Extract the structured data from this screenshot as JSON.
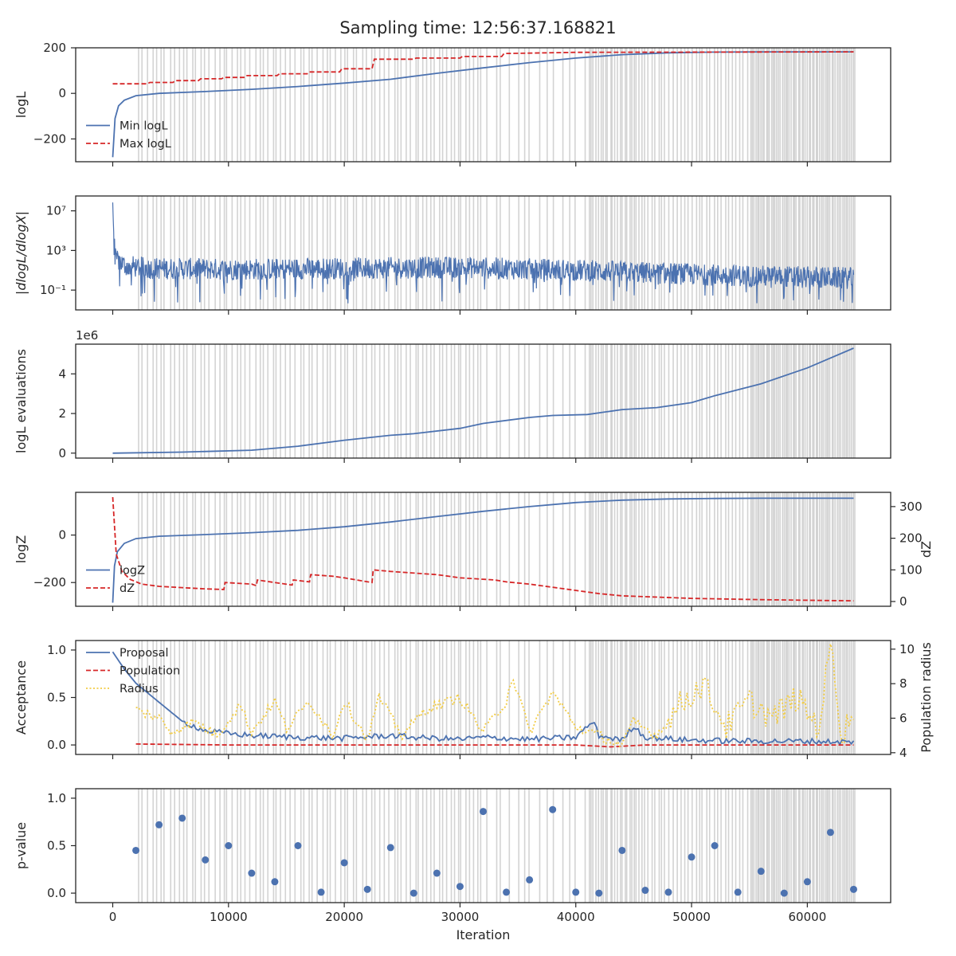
{
  "title": "Sampling time: 12:56:37.168821",
  "colors": {
    "blue": "#4c72b0",
    "red": "#d62728",
    "yellow": "#f2cc44",
    "grey_band": "#d3d3d3",
    "frame": "#262626"
  },
  "chart_data": [
    {
      "type": "line",
      "id": "loglike",
      "ylabel": "logL",
      "xlim": [
        -3200,
        67200
      ],
      "ylim": [
        -300,
        200
      ],
      "yticks": [
        -200,
        0,
        200
      ],
      "ytick_labels": [
        "−200",
        "0",
        "200"
      ],
      "legend": "lower-left",
      "series": [
        {
          "name": "Min logL",
          "style": "solid",
          "color": "blue",
          "x": [
            0,
            200,
            500,
            1000,
            2000,
            4000,
            8000,
            12000,
            16000,
            20000,
            24000,
            28000,
            32000,
            36000,
            40000,
            44000,
            48000,
            52000,
            56000,
            60000,
            64000
          ],
          "y": [
            -280,
            -110,
            -55,
            -30,
            -10,
            0,
            8,
            18,
            30,
            45,
            62,
            88,
            112,
            135,
            155,
            170,
            178,
            181,
            182,
            182,
            182
          ]
        },
        {
          "name": "Max logL",
          "style": "dashed",
          "color": "red",
          "x": [
            0,
            3000,
            3200,
            5200,
            5400,
            7400,
            7600,
            9400,
            9600,
            11400,
            11600,
            14200,
            14400,
            16800,
            17000,
            19600,
            19800,
            22400,
            22600,
            26000,
            26200,
            30000,
            30200,
            33600,
            33800,
            40000,
            64000
          ],
          "y": [
            42,
            42,
            48,
            48,
            56,
            56,
            64,
            64,
            70,
            70,
            78,
            78,
            86,
            86,
            94,
            94,
            108,
            108,
            150,
            150,
            155,
            155,
            162,
            162,
            175,
            180,
            182
          ]
        }
      ]
    },
    {
      "type": "line",
      "id": "dlogl",
      "ylabel": "|dlogL/dlogX|",
      "log_scale": true,
      "xlim": [
        -3200,
        67200
      ],
      "ylim": [
        -3,
        8.5
      ],
      "yticks": [
        -1,
        3,
        7
      ],
      "ytick_labels": [
        "10⁻¹",
        "10³",
        "10⁷"
      ],
      "series": [
        {
          "name": "",
          "style": "solid",
          "color": "blue",
          "x": [
            0,
            100,
            300,
            1000,
            3000,
            10000,
            20000,
            30000,
            40000,
            50000,
            60000,
            64000
          ],
          "y": [
            7.5,
            4.5,
            2.2,
            1.5,
            1.2,
            1.1,
            1.2,
            1.3,
            1.0,
            0.6,
            0.3,
            0.2
          ]
        }
      ]
    },
    {
      "type": "line",
      "id": "logl-evaluations",
      "ylabel": "logL evaluations",
      "offset_label": "1e6",
      "xlim": [
        -3200,
        67200
      ],
      "ylim": [
        -0.25,
        5.5
      ],
      "yticks": [
        0,
        2,
        4
      ],
      "ytick_labels": [
        "0",
        "2",
        "4"
      ],
      "series": [
        {
          "name": "",
          "style": "solid",
          "color": "blue",
          "x": [
            0,
            6000,
            12000,
            16000,
            20000,
            24000,
            26000,
            30000,
            32000,
            36000,
            38000,
            41000,
            44000,
            47000,
            50000,
            52000,
            56000,
            60000,
            64000
          ],
          "y": [
            0,
            0.05,
            0.15,
            0.35,
            0.65,
            0.9,
            0.98,
            1.25,
            1.5,
            1.8,
            1.9,
            1.95,
            2.2,
            2.3,
            2.55,
            2.9,
            3.5,
            4.3,
            5.3
          ]
        }
      ]
    },
    {
      "type": "line",
      "id": "logz",
      "ylabel": "logZ",
      "ylabel_right": "dZ",
      "xlim": [
        -3200,
        67200
      ],
      "ylim": [
        -300,
        180
      ],
      "yticks": [
        -200,
        0
      ],
      "ytick_labels": [
        "−200",
        "0"
      ],
      "ylim_right": [
        -15,
        345
      ],
      "yticks_right": [
        0,
        100,
        200,
        300
      ],
      "ytick_labels_right": [
        "0",
        "100",
        "200",
        "300"
      ],
      "legend": "lower-left",
      "series": [
        {
          "name": "logZ",
          "style": "solid",
          "color": "blue",
          "axis": "left",
          "x": [
            0,
            150,
            400,
            1000,
            2000,
            4000,
            8000,
            12000,
            16000,
            20000,
            24000,
            28000,
            32000,
            36000,
            40000,
            44000,
            48000,
            52000,
            56000,
            60000,
            64000
          ],
          "y": [
            -285,
            -130,
            -70,
            -35,
            -15,
            -5,
            2,
            10,
            20,
            35,
            55,
            78,
            100,
            120,
            137,
            147,
            152,
            154,
            155,
            155,
            155
          ]
        },
        {
          "name": "dZ",
          "style": "dashed",
          "color": "red",
          "axis": "right",
          "x": [
            0,
            300,
            800,
            1500,
            2500,
            4000,
            6000,
            8000,
            9600,
            9700,
            12000,
            12400,
            12500,
            14000,
            15500,
            15600,
            17000,
            17100,
            19000,
            20000,
            22400,
            22500,
            24000,
            28000,
            30000,
            33000,
            34000,
            36000,
            40000,
            42000,
            44000,
            50000,
            56000,
            64000
          ],
          "y": [
            330,
            150,
            95,
            70,
            55,
            48,
            44,
            40,
            38,
            60,
            55,
            50,
            68,
            60,
            52,
            68,
            62,
            85,
            80,
            75,
            60,
            100,
            95,
            85,
            75,
            68,
            62,
            55,
            35,
            25,
            18,
            10,
            6,
            2
          ]
        }
      ]
    },
    {
      "type": "line",
      "id": "acceptance",
      "ylabel": "Acceptance",
      "ylabel_right": "Population radius",
      "xlim": [
        -3200,
        67200
      ],
      "ylim": [
        -0.1,
        1.1
      ],
      "yticks": [
        0.0,
        0.5,
        1.0
      ],
      "ytick_labels": [
        "0.0",
        "0.5",
        "1.0"
      ],
      "ylim_right": [
        3.9,
        10.5
      ],
      "yticks_right": [
        4,
        6,
        8,
        10
      ],
      "ytick_labels_right": [
        "4",
        "6",
        "8",
        "10"
      ],
      "legend": "upper-left",
      "series": [
        {
          "name": "Proposal",
          "style": "solid",
          "color": "blue",
          "axis": "left",
          "x": [
            0,
            1000,
            2000,
            3000,
            4000,
            5000,
            6000,
            8000,
            10000,
            12000,
            16000,
            20000,
            24000,
            26000,
            30000,
            32000,
            36000,
            40000,
            41500,
            42000,
            44000,
            45000,
            46000,
            50000,
            55000,
            60000,
            64000
          ],
          "y": [
            0.98,
            0.8,
            0.65,
            0.55,
            0.45,
            0.35,
            0.25,
            0.15,
            0.12,
            0.1,
            0.08,
            0.07,
            0.1,
            0.08,
            0.06,
            0.08,
            0.06,
            0.08,
            0.25,
            0.1,
            0.05,
            0.2,
            0.08,
            0.05,
            0.04,
            0.04,
            0.03
          ]
        },
        {
          "name": "Population",
          "style": "dashed",
          "color": "red",
          "axis": "left",
          "x": [
            2000,
            10000,
            20000,
            30000,
            40000,
            43000,
            46000,
            50000,
            64000
          ],
          "y": [
            0.01,
            0.0,
            0.0,
            0.0,
            0.0,
            -0.02,
            0.0,
            0.0,
            0.0
          ]
        },
        {
          "name": "Radius",
          "style": "dotted",
          "color": "yellow",
          "axis": "right",
          "x": [
            2000,
            4000,
            5000,
            7000,
            9000,
            11000,
            12000,
            14000,
            15000,
            17000,
            19000,
            20000,
            22000,
            23000,
            25000,
            27000,
            30000,
            32000,
            34000,
            34500,
            36000,
            38000,
            40000,
            42000,
            44000,
            45000,
            47000,
            49000,
            51000,
            53000,
            55000,
            57000,
            59000,
            61000,
            62000,
            63000,
            64000
          ],
          "y": [
            6.5,
            6.0,
            5.2,
            5.8,
            5.0,
            6.8,
            5.2,
            7.0,
            5.4,
            7.0,
            5.0,
            7.0,
            4.8,
            7.2,
            5.0,
            6.5,
            7.2,
            5.2,
            7.0,
            8.5,
            5.2,
            7.5,
            5.5,
            5.0,
            4.4,
            5.8,
            5.0,
            6.8,
            8.0,
            5.5,
            7.0,
            6.0,
            7.2,
            5.5,
            10.3,
            5.0,
            6.5
          ]
        }
      ]
    },
    {
      "type": "scatter",
      "id": "pvalue",
      "ylabel": "p-value",
      "xlabel": "Iteration",
      "xlim": [
        -3200,
        67200
      ],
      "ylim": [
        -0.1,
        1.1
      ],
      "yticks": [
        0.0,
        0.5,
        1.0
      ],
      "ytick_labels": [
        "0.0",
        "0.5",
        "1.0"
      ],
      "xticks": [
        0,
        10000,
        20000,
        30000,
        40000,
        50000,
        60000
      ],
      "xtick_labels": [
        "0",
        "10000",
        "20000",
        "30000",
        "40000",
        "50000",
        "60000"
      ],
      "series": [
        {
          "name": "",
          "color": "blue",
          "x": [
            2000,
            4000,
            6000,
            8000,
            10000,
            12000,
            14000,
            16000,
            18000,
            20000,
            22000,
            24000,
            26000,
            28000,
            30000,
            32000,
            34000,
            36000,
            38000,
            40000,
            42000,
            44000,
            46000,
            48000,
            50000,
            52000,
            54000,
            56000,
            58000,
            60000,
            62000,
            64000
          ],
          "y": [
            0.45,
            0.72,
            0.79,
            0.35,
            0.5,
            0.21,
            0.12,
            0.5,
            0.01,
            0.32,
            0.04,
            0.48,
            0.0,
            0.21,
            0.07,
            0.86,
            0.01,
            0.14,
            0.88,
            0.01,
            0.0,
            0.45,
            0.03,
            0.01,
            0.38,
            0.5,
            0.01,
            0.23,
            0.0,
            0.12,
            0.64,
            0.04
          ]
        }
      ]
    }
  ],
  "bands": {
    "groups": [
      {
        "start": 2000,
        "end": 26000,
        "count": 62
      },
      {
        "start": 26000,
        "end": 32000,
        "count": 18
      },
      {
        "start": 32000,
        "end": 41000,
        "count": 14
      },
      {
        "start": 41000,
        "end": 46000,
        "count": 24
      },
      {
        "start": 46000,
        "end": 55000,
        "count": 28
      },
      {
        "start": 55000,
        "end": 64200,
        "count": 60
      }
    ]
  }
}
